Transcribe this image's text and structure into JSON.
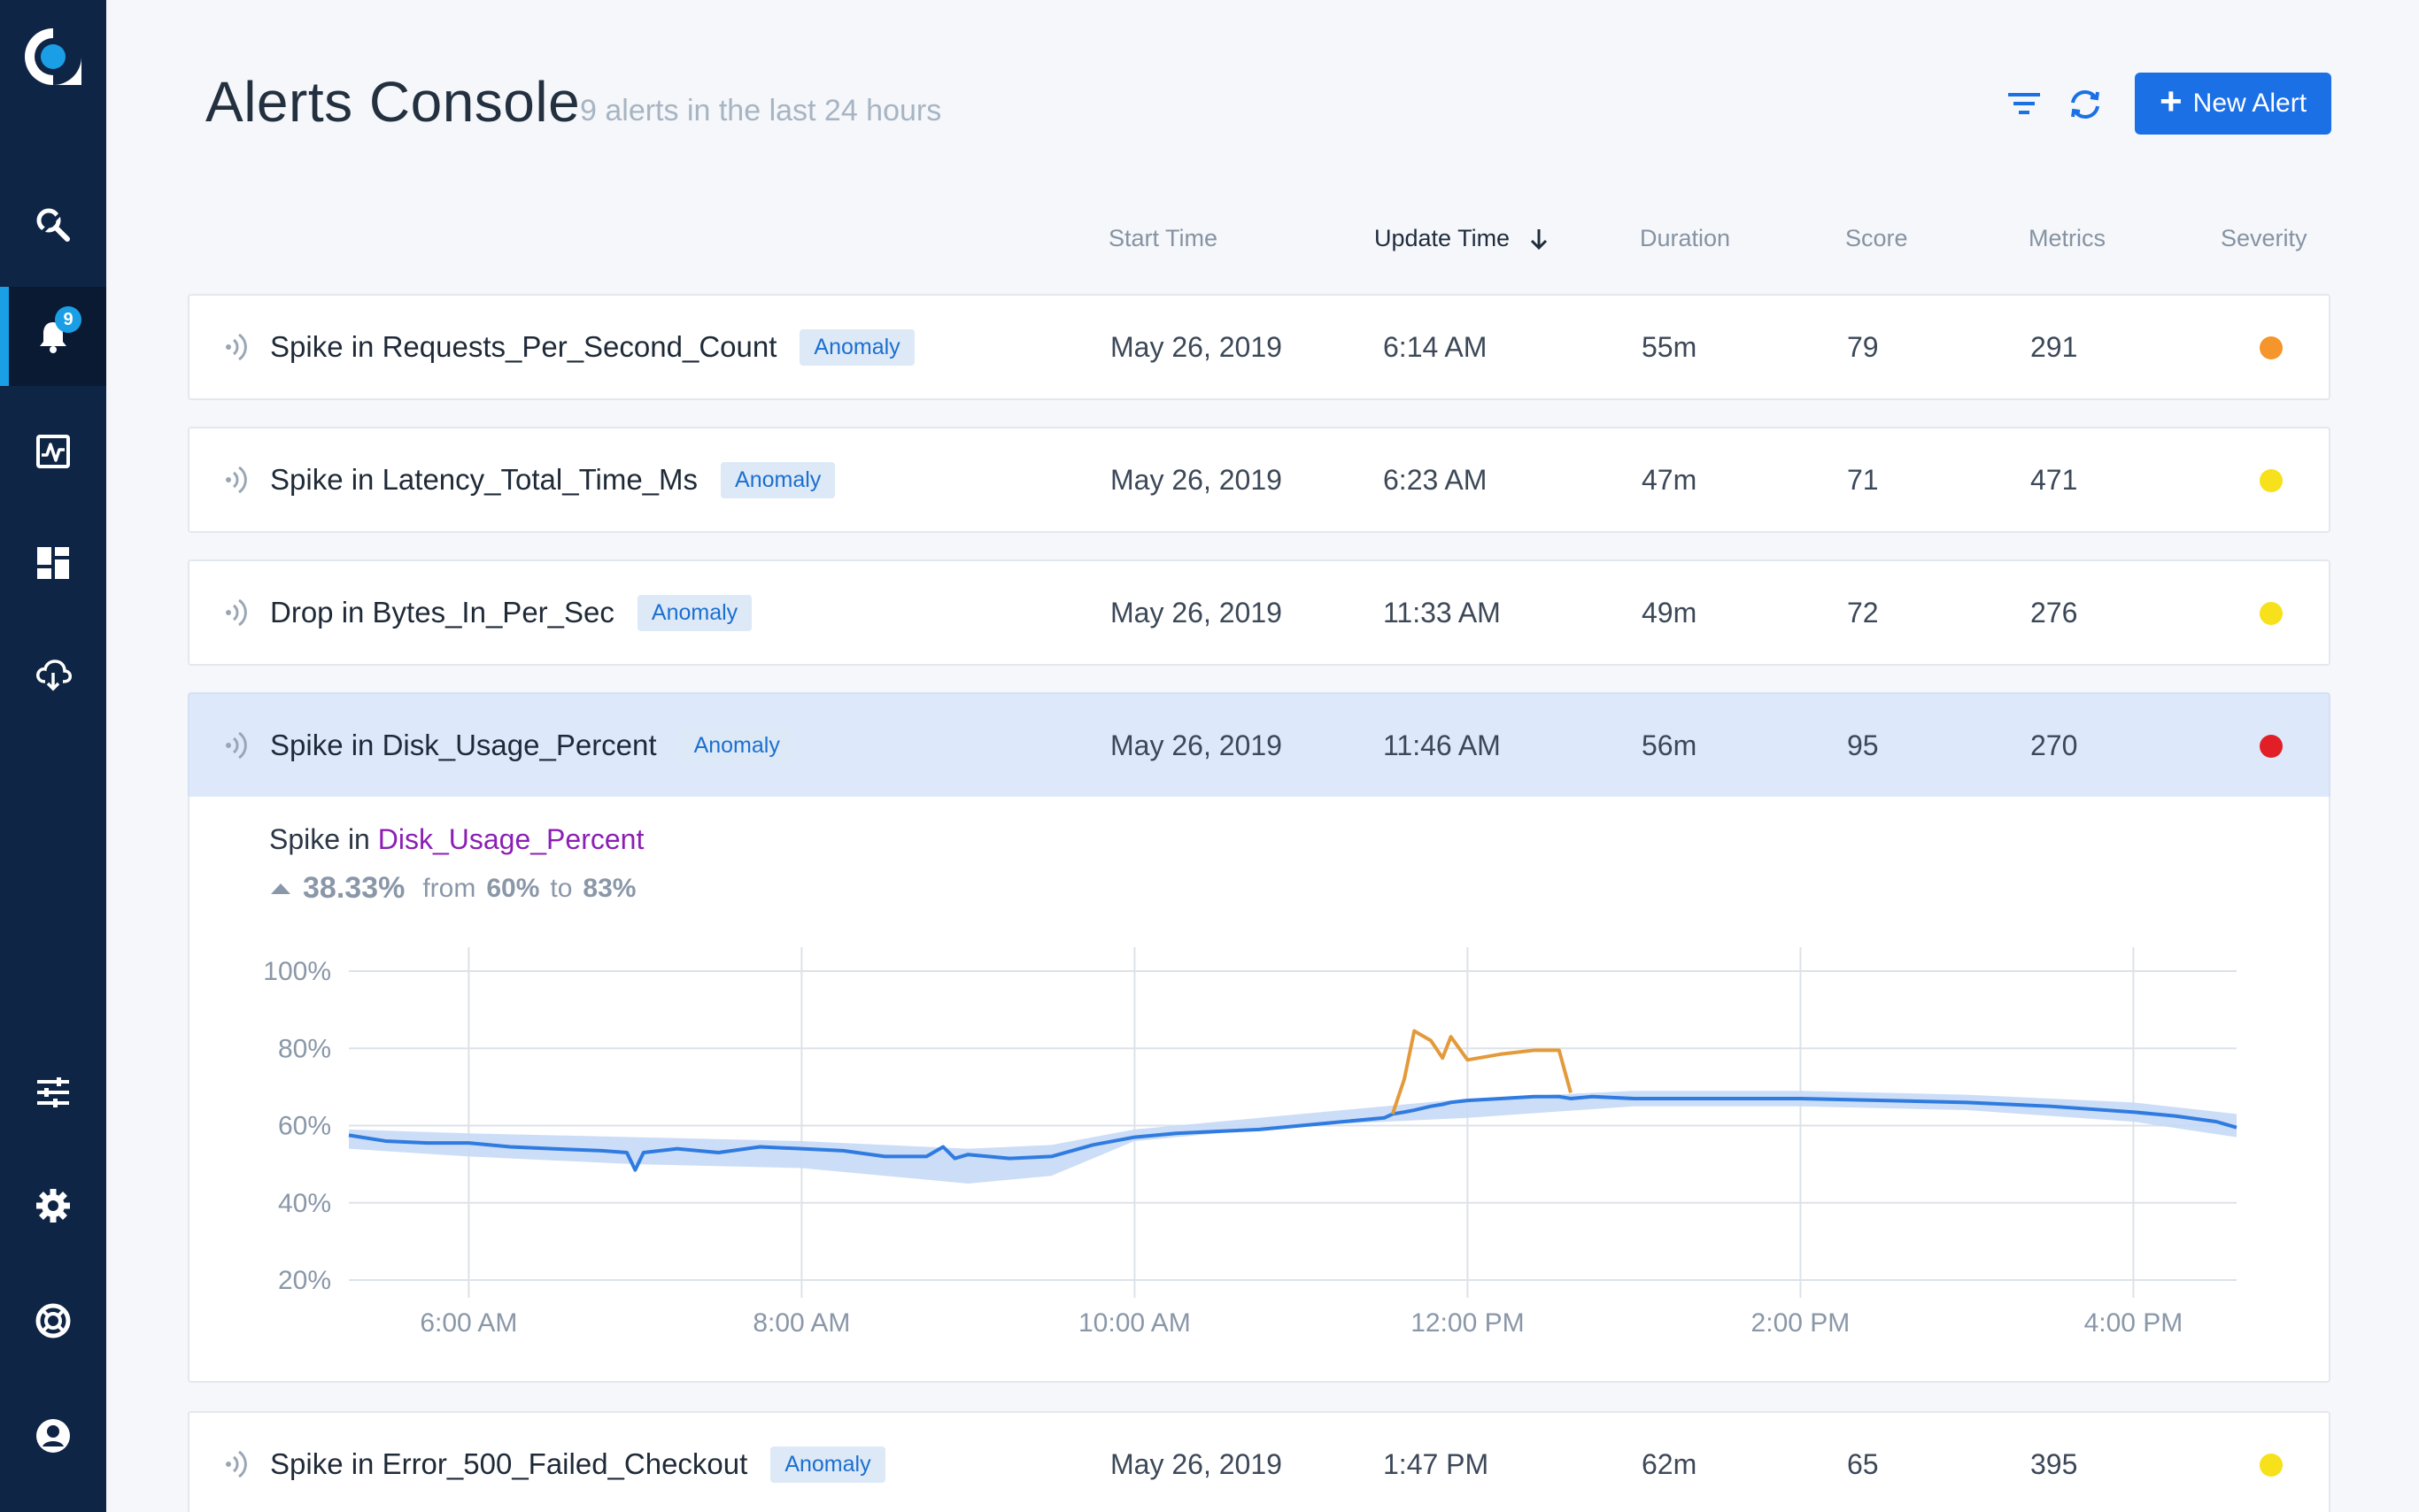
{
  "app": {
    "title": "Alerts Console",
    "subtitle": "9 alerts in the last 24 hours",
    "new_alert_label": "New Alert",
    "notification_count": "9"
  },
  "columns": {
    "start": "Start Time",
    "update": "Update Time",
    "duration": "Duration",
    "score": "Score",
    "metrics": "Metrics",
    "severity": "Severity"
  },
  "alerts": [
    {
      "name": "Spike in Requests_Per_Second_Count",
      "tag": "Anomaly",
      "start": "May 26, 2019",
      "update": "6:14 AM",
      "duration": "55m",
      "score": "79",
      "metrics": "291",
      "severity_color": "#f5952b"
    },
    {
      "name": "Spike in Latency_Total_Time_Ms",
      "tag": "Anomaly",
      "start": "May 26, 2019",
      "update": "6:23 AM",
      "duration": "47m",
      "score": "71",
      "metrics": "471",
      "severity_color": "#f6e11b"
    },
    {
      "name": "Drop in Bytes_In_Per_Sec",
      "tag": "Anomaly",
      "start": "May 26, 2019",
      "update": "11:33 AM",
      "duration": "49m",
      "score": "72",
      "metrics": "276",
      "severity_color": "#f6e11b"
    },
    {
      "name": "Spike in Disk_Usage_Percent",
      "tag": "Anomaly",
      "start": "May 26, 2019",
      "update": "11:46 AM",
      "duration": "56m",
      "score": "95",
      "metrics": "270",
      "severity_color": "#e21f26"
    },
    {
      "name": "Spike in Error_500_Failed_Checkout",
      "tag": "Anomaly",
      "start": "May 26, 2019",
      "update": "1:47 PM",
      "duration": "62m",
      "score": "65",
      "metrics": "395",
      "severity_color": "#f6e11b"
    }
  ],
  "detail": {
    "prefix": "Spike in",
    "metric": "Disk_Usage_Percent",
    "change_pct": "38.33%",
    "from_word": "from",
    "from_val": "60%",
    "to_word": "to",
    "to_val": "83%"
  },
  "chart_data": {
    "type": "line",
    "y_ticks": [
      "100%",
      "80%",
      "60%",
      "40%",
      "20%"
    ],
    "x_ticks": [
      "6:00 AM",
      "8:00 AM",
      "10:00 AM",
      "12:00 PM",
      "2:00 PM",
      "4:00 PM"
    ],
    "ylim": [
      20,
      100
    ],
    "x_range_hours": [
      5.28,
      16.62
    ],
    "grid": true,
    "series": [
      {
        "role": "actual",
        "color": "#2f7be0",
        "x": [
          5.28,
          5.5,
          5.75,
          6.0,
          6.25,
          6.5,
          6.8,
          6.95,
          7.0,
          7.05,
          7.25,
          7.5,
          7.75,
          8.0,
          8.25,
          8.5,
          8.75,
          8.85,
          8.92,
          9.0,
          9.25,
          9.5,
          9.75,
          10.0,
          10.25,
          10.5,
          10.75,
          11.0,
          11.25,
          11.5,
          11.55,
          11.62,
          11.68,
          11.78,
          11.85,
          11.9,
          12.0,
          12.2,
          12.4,
          12.55,
          12.62,
          12.75,
          13.0,
          13.25,
          13.5,
          14.0,
          14.5,
          15.0,
          15.5,
          16.0,
          16.25,
          16.5,
          16.62
        ],
        "y": [
          57.5,
          56.0,
          55.5,
          55.5,
          54.5,
          54.0,
          53.5,
          53.0,
          48.5,
          53.0,
          54.0,
          53.0,
          54.5,
          54.0,
          53.5,
          52.0,
          52.0,
          54.5,
          51.5,
          52.5,
          51.5,
          52.0,
          55.0,
          57.0,
          58.0,
          58.5,
          59.0,
          60.0,
          61.0,
          62.0,
          63.0,
          63.5,
          64.0,
          65.0,
          65.5,
          66.0,
          66.5,
          67.0,
          67.5,
          67.5,
          67.0,
          67.5,
          67.0,
          67.0,
          67.0,
          67.0,
          66.5,
          66.0,
          65.0,
          63.5,
          62.5,
          61.0,
          59.5
        ]
      },
      {
        "role": "anomaly",
        "color": "#e39a3b",
        "x": [
          11.55,
          11.62,
          11.68,
          11.78,
          11.85,
          11.9,
          12.0,
          12.2,
          12.4,
          12.55,
          12.62
        ],
        "y": [
          63.0,
          72.0,
          84.5,
          82.0,
          77.5,
          83.0,
          77.0,
          78.5,
          79.5,
          79.5,
          68.5
        ]
      }
    ],
    "band": {
      "color": "#c6d9f6",
      "x": [
        5.28,
        6.0,
        7.0,
        8.0,
        9.0,
        9.5,
        10.0,
        11.0,
        12.0,
        13.0,
        14.0,
        15.0,
        16.0,
        16.62
      ],
      "upper": [
        59,
        58,
        57,
        56,
        54,
        55,
        59,
        63,
        67,
        69,
        69,
        68,
        66,
        63
      ],
      "lower": [
        54,
        52,
        50,
        49,
        45,
        47,
        56,
        60,
        62,
        65,
        65,
        64,
        61,
        57
      ]
    }
  }
}
